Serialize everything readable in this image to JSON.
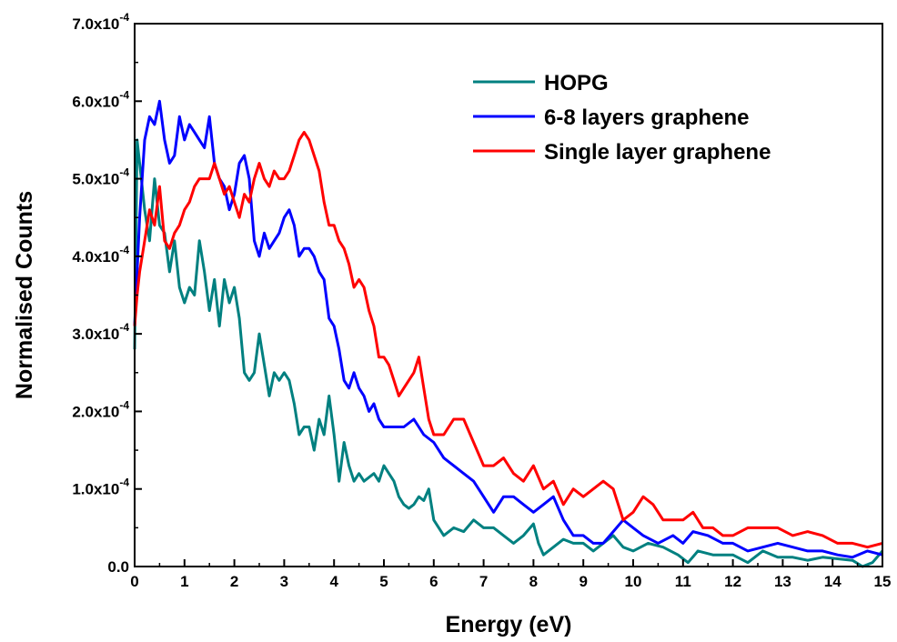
{
  "chart_data": {
    "type": "line",
    "title": "",
    "xlabel": "Energy (eV)",
    "ylabel": "Normalised Counts",
    "xlim": [
      0,
      15
    ],
    "ylim": [
      0,
      0.0007
    ],
    "x_ticks": [
      "0",
      "1",
      "2",
      "3",
      "4",
      "5",
      "6",
      "7",
      "8",
      "9",
      "10",
      "11",
      "12",
      "13",
      "14",
      "15"
    ],
    "y_ticks": [
      {
        "mantissa": "0.0",
        "exp": ""
      },
      {
        "mantissa": "1.0x10",
        "exp": "-4"
      },
      {
        "mantissa": "2.0x10",
        "exp": "-4"
      },
      {
        "mantissa": "3.0x10",
        "exp": "-4"
      },
      {
        "mantissa": "4.0x10",
        "exp": "-4"
      },
      {
        "mantissa": "5.0x10",
        "exp": "-4"
      },
      {
        "mantissa": "6.0x10",
        "exp": "-4"
      },
      {
        "mantissa": "7.0x10",
        "exp": "-4"
      }
    ],
    "grid": false,
    "legend_position": "top-right",
    "series": [
      {
        "name": "HOPG",
        "color": "#008080",
        "points": [
          [
            0,
            0.00028
          ],
          [
            0.05,
            0.00055
          ],
          [
            0.1,
            0.00052
          ],
          [
            0.2,
            0.00046
          ],
          [
            0.3,
            0.00042
          ],
          [
            0.4,
            0.0005
          ],
          [
            0.5,
            0.00044
          ],
          [
            0.6,
            0.00043
          ],
          [
            0.7,
            0.00038
          ],
          [
            0.8,
            0.00042
          ],
          [
            0.9,
            0.00036
          ],
          [
            1.0,
            0.00034
          ],
          [
            1.1,
            0.00036
          ],
          [
            1.2,
            0.00035
          ],
          [
            1.3,
            0.00042
          ],
          [
            1.4,
            0.00038
          ],
          [
            1.5,
            0.00033
          ],
          [
            1.6,
            0.00037
          ],
          [
            1.7,
            0.00031
          ],
          [
            1.8,
            0.00037
          ],
          [
            1.9,
            0.00034
          ],
          [
            2.0,
            0.00036
          ],
          [
            2.1,
            0.00032
          ],
          [
            2.2,
            0.00025
          ],
          [
            2.3,
            0.00024
          ],
          [
            2.4,
            0.00025
          ],
          [
            2.5,
            0.0003
          ],
          [
            2.6,
            0.00026
          ],
          [
            2.7,
            0.00022
          ],
          [
            2.8,
            0.00025
          ],
          [
            2.9,
            0.00024
          ],
          [
            3.0,
            0.00025
          ],
          [
            3.1,
            0.00024
          ],
          [
            3.2,
            0.00021
          ],
          [
            3.3,
            0.00017
          ],
          [
            3.4,
            0.00018
          ],
          [
            3.5,
            0.00018
          ],
          [
            3.6,
            0.00015
          ],
          [
            3.7,
            0.00019
          ],
          [
            3.8,
            0.00017
          ],
          [
            3.9,
            0.00022
          ],
          [
            4.0,
            0.00017
          ],
          [
            4.1,
            0.00011
          ],
          [
            4.2,
            0.00016
          ],
          [
            4.3,
            0.00013
          ],
          [
            4.4,
            0.00011
          ],
          [
            4.5,
            0.00012
          ],
          [
            4.6,
            0.00011
          ],
          [
            4.7,
            0.000115
          ],
          [
            4.8,
            0.00012
          ],
          [
            4.9,
            0.00011
          ],
          [
            5.0,
            0.00013
          ],
          [
            5.1,
            0.00012
          ],
          [
            5.2,
            0.00011
          ],
          [
            5.3,
            9e-05
          ],
          [
            5.4,
            8e-05
          ],
          [
            5.5,
            7.5e-05
          ],
          [
            5.6,
            8e-05
          ],
          [
            5.7,
            9e-05
          ],
          [
            5.8,
            8.5e-05
          ],
          [
            5.9,
            0.0001
          ],
          [
            6.0,
            6e-05
          ],
          [
            6.2,
            4e-05
          ],
          [
            6.4,
            5e-05
          ],
          [
            6.6,
            4.5e-05
          ],
          [
            6.8,
            6e-05
          ],
          [
            7.0,
            5e-05
          ],
          [
            7.2,
            5e-05
          ],
          [
            7.4,
            4e-05
          ],
          [
            7.6,
            3e-05
          ],
          [
            7.8,
            4e-05
          ],
          [
            8.0,
            5.5e-05
          ],
          [
            8.1,
            3e-05
          ],
          [
            8.2,
            1.5e-05
          ],
          [
            8.4,
            2.5e-05
          ],
          [
            8.6,
            3.5e-05
          ],
          [
            8.8,
            3e-05
          ],
          [
            9.0,
            3e-05
          ],
          [
            9.2,
            2e-05
          ],
          [
            9.4,
            3e-05
          ],
          [
            9.6,
            4e-05
          ],
          [
            9.8,
            2.5e-05
          ],
          [
            10.0,
            2e-05
          ],
          [
            10.3,
            3e-05
          ],
          [
            10.6,
            2.5e-05
          ],
          [
            10.9,
            1.5e-05
          ],
          [
            11.1,
            5e-06
          ],
          [
            11.3,
            2e-05
          ],
          [
            11.6,
            1.5e-05
          ],
          [
            12.0,
            1.5e-05
          ],
          [
            12.3,
            5e-06
          ],
          [
            12.6,
            2e-05
          ],
          [
            12.9,
            1.2e-05
          ],
          [
            13.2,
            1.2e-05
          ],
          [
            13.5,
            8e-06
          ],
          [
            13.8,
            1.2e-05
          ],
          [
            14.1,
            1e-05
          ],
          [
            14.4,
            8e-06
          ],
          [
            14.6,
            0.0
          ],
          [
            14.8,
            5e-06
          ],
          [
            15.0,
            2e-05
          ]
        ]
      },
      {
        "name": "6-8 layers graphene",
        "color": "#0000ff",
        "points": [
          [
            0,
            0.00031
          ],
          [
            0.05,
            0.00038
          ],
          [
            0.1,
            0.00045
          ],
          [
            0.2,
            0.00055
          ],
          [
            0.3,
            0.00058
          ],
          [
            0.4,
            0.00057
          ],
          [
            0.5,
            0.0006
          ],
          [
            0.6,
            0.00055
          ],
          [
            0.7,
            0.00052
          ],
          [
            0.8,
            0.00053
          ],
          [
            0.9,
            0.00058
          ],
          [
            1.0,
            0.00055
          ],
          [
            1.1,
            0.00057
          ],
          [
            1.2,
            0.00056
          ],
          [
            1.3,
            0.00055
          ],
          [
            1.4,
            0.00054
          ],
          [
            1.5,
            0.00058
          ],
          [
            1.6,
            0.00052
          ],
          [
            1.7,
            0.0005
          ],
          [
            1.8,
            0.00049
          ],
          [
            1.9,
            0.00046
          ],
          [
            2.0,
            0.00048
          ],
          [
            2.1,
            0.00052
          ],
          [
            2.2,
            0.00053
          ],
          [
            2.3,
            0.0005
          ],
          [
            2.4,
            0.00042
          ],
          [
            2.5,
            0.0004
          ],
          [
            2.6,
            0.00043
          ],
          [
            2.7,
            0.00041
          ],
          [
            2.8,
            0.00042
          ],
          [
            2.9,
            0.00043
          ],
          [
            3.0,
            0.00045
          ],
          [
            3.1,
            0.00046
          ],
          [
            3.2,
            0.00044
          ],
          [
            3.3,
            0.0004
          ],
          [
            3.4,
            0.00041
          ],
          [
            3.5,
            0.00041
          ],
          [
            3.6,
            0.0004
          ],
          [
            3.7,
            0.00038
          ],
          [
            3.8,
            0.00037
          ],
          [
            3.9,
            0.00032
          ],
          [
            4.0,
            0.00031
          ],
          [
            4.1,
            0.00028
          ],
          [
            4.2,
            0.00024
          ],
          [
            4.3,
            0.00023
          ],
          [
            4.4,
            0.00025
          ],
          [
            4.5,
            0.00023
          ],
          [
            4.6,
            0.00022
          ],
          [
            4.7,
            0.0002
          ],
          [
            4.8,
            0.00021
          ],
          [
            4.9,
            0.00019
          ],
          [
            5.0,
            0.00018
          ],
          [
            5.2,
            0.00018
          ],
          [
            5.4,
            0.00018
          ],
          [
            5.6,
            0.00019
          ],
          [
            5.8,
            0.00017
          ],
          [
            6.0,
            0.00016
          ],
          [
            6.2,
            0.00014
          ],
          [
            6.4,
            0.00013
          ],
          [
            6.6,
            0.00012
          ],
          [
            6.8,
            0.00011
          ],
          [
            7.0,
            9e-05
          ],
          [
            7.2,
            7e-05
          ],
          [
            7.4,
            9e-05
          ],
          [
            7.6,
            9e-05
          ],
          [
            7.8,
            8e-05
          ],
          [
            8.0,
            7e-05
          ],
          [
            8.2,
            8e-05
          ],
          [
            8.4,
            9e-05
          ],
          [
            8.6,
            6e-05
          ],
          [
            8.8,
            4e-05
          ],
          [
            9.0,
            4e-05
          ],
          [
            9.2,
            3e-05
          ],
          [
            9.4,
            3e-05
          ],
          [
            9.6,
            4.5e-05
          ],
          [
            9.8,
            6e-05
          ],
          [
            10.0,
            5e-05
          ],
          [
            10.2,
            4e-05
          ],
          [
            10.5,
            3e-05
          ],
          [
            10.8,
            4e-05
          ],
          [
            11.0,
            3e-05
          ],
          [
            11.2,
            4.5e-05
          ],
          [
            11.5,
            4e-05
          ],
          [
            11.8,
            3e-05
          ],
          [
            12.0,
            3e-05
          ],
          [
            12.3,
            2e-05
          ],
          [
            12.6,
            2.5e-05
          ],
          [
            12.9,
            3e-05
          ],
          [
            13.2,
            2.5e-05
          ],
          [
            13.5,
            2e-05
          ],
          [
            13.8,
            2e-05
          ],
          [
            14.1,
            1.5e-05
          ],
          [
            14.4,
            1.2e-05
          ],
          [
            14.7,
            2e-05
          ],
          [
            15.0,
            1.5e-05
          ]
        ]
      },
      {
        "name": "Single layer graphene",
        "color": "#ff0000",
        "points": [
          [
            0,
            0.00031
          ],
          [
            0.05,
            0.00035
          ],
          [
            0.1,
            0.00038
          ],
          [
            0.2,
            0.00042
          ],
          [
            0.3,
            0.00046
          ],
          [
            0.4,
            0.00044
          ],
          [
            0.5,
            0.00049
          ],
          [
            0.6,
            0.00042
          ],
          [
            0.7,
            0.00041
          ],
          [
            0.8,
            0.00043
          ],
          [
            0.9,
            0.00044
          ],
          [
            1.0,
            0.00046
          ],
          [
            1.1,
            0.00047
          ],
          [
            1.2,
            0.00049
          ],
          [
            1.3,
            0.0005
          ],
          [
            1.4,
            0.0005
          ],
          [
            1.5,
            0.0005
          ],
          [
            1.6,
            0.00052
          ],
          [
            1.7,
            0.0005
          ],
          [
            1.8,
            0.00048
          ],
          [
            1.9,
            0.00049
          ],
          [
            2.0,
            0.00047
          ],
          [
            2.1,
            0.00045
          ],
          [
            2.2,
            0.00048
          ],
          [
            2.3,
            0.00047
          ],
          [
            2.4,
            0.0005
          ],
          [
            2.5,
            0.00052
          ],
          [
            2.6,
            0.0005
          ],
          [
            2.7,
            0.00049
          ],
          [
            2.8,
            0.00051
          ],
          [
            2.9,
            0.0005
          ],
          [
            3.0,
            0.0005
          ],
          [
            3.1,
            0.00051
          ],
          [
            3.2,
            0.00053
          ],
          [
            3.3,
            0.00055
          ],
          [
            3.4,
            0.00056
          ],
          [
            3.5,
            0.00055
          ],
          [
            3.6,
            0.00053
          ],
          [
            3.7,
            0.00051
          ],
          [
            3.8,
            0.00047
          ],
          [
            3.9,
            0.00044
          ],
          [
            4.0,
            0.00044
          ],
          [
            4.1,
            0.00042
          ],
          [
            4.2,
            0.00041
          ],
          [
            4.3,
            0.00039
          ],
          [
            4.4,
            0.00036
          ],
          [
            4.5,
            0.00037
          ],
          [
            4.6,
            0.00036
          ],
          [
            4.7,
            0.00033
          ],
          [
            4.8,
            0.00031
          ],
          [
            4.9,
            0.00027
          ],
          [
            5.0,
            0.00027
          ],
          [
            5.1,
            0.00026
          ],
          [
            5.2,
            0.00024
          ],
          [
            5.3,
            0.00022
          ],
          [
            5.4,
            0.00023
          ],
          [
            5.5,
            0.00024
          ],
          [
            5.6,
            0.00025
          ],
          [
            5.7,
            0.00027
          ],
          [
            5.8,
            0.00023
          ],
          [
            5.9,
            0.00019
          ],
          [
            6.0,
            0.00017
          ],
          [
            6.2,
            0.00017
          ],
          [
            6.4,
            0.00019
          ],
          [
            6.6,
            0.00019
          ],
          [
            6.8,
            0.00016
          ],
          [
            7.0,
            0.00013
          ],
          [
            7.2,
            0.00013
          ],
          [
            7.4,
            0.00014
          ],
          [
            7.6,
            0.00012
          ],
          [
            7.8,
            0.00011
          ],
          [
            8.0,
            0.00013
          ],
          [
            8.2,
            0.0001
          ],
          [
            8.4,
            0.00011
          ],
          [
            8.6,
            8e-05
          ],
          [
            8.8,
            0.0001
          ],
          [
            9.0,
            9e-05
          ],
          [
            9.2,
            0.0001
          ],
          [
            9.4,
            0.00011
          ],
          [
            9.6,
            0.0001
          ],
          [
            9.8,
            6e-05
          ],
          [
            10.0,
            7e-05
          ],
          [
            10.2,
            9e-05
          ],
          [
            10.4,
            8e-05
          ],
          [
            10.6,
            6e-05
          ],
          [
            10.8,
            6e-05
          ],
          [
            11.0,
            6e-05
          ],
          [
            11.2,
            7e-05
          ],
          [
            11.4,
            5e-05
          ],
          [
            11.6,
            5e-05
          ],
          [
            11.8,
            4e-05
          ],
          [
            12.0,
            4e-05
          ],
          [
            12.3,
            5e-05
          ],
          [
            12.6,
            5e-05
          ],
          [
            12.9,
            5e-05
          ],
          [
            13.2,
            4e-05
          ],
          [
            13.5,
            4.5e-05
          ],
          [
            13.8,
            4e-05
          ],
          [
            14.1,
            3e-05
          ],
          [
            14.4,
            3e-05
          ],
          [
            14.7,
            2.5e-05
          ],
          [
            15.0,
            3e-05
          ]
        ]
      }
    ]
  }
}
